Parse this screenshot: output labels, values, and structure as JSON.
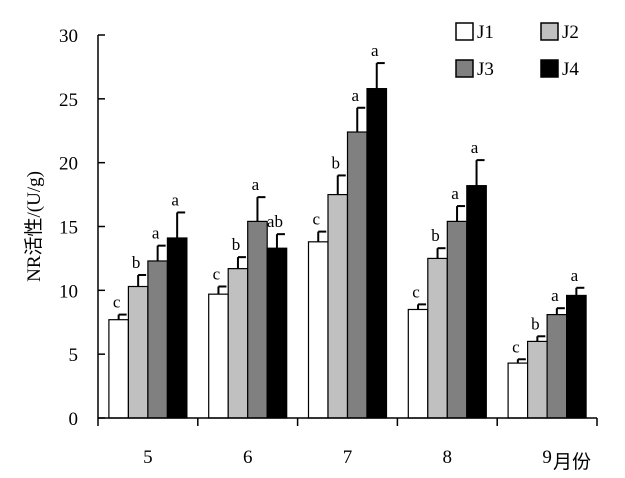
{
  "chart_data": {
    "type": "bar",
    "title": "",
    "ylabel": "NR活性/(U/g)",
    "xlabel": "月份",
    "ylim": [
      0,
      30
    ],
    "yticks": [
      0,
      5,
      10,
      15,
      20,
      25,
      30
    ],
    "categories": [
      "5",
      "6",
      "7",
      "8",
      "9"
    ],
    "legend_position": "top-right",
    "grid": false,
    "series": [
      {
        "name": "J1",
        "color": "#ffffff",
        "values": [
          7.7,
          9.7,
          13.8,
          8.5,
          4.3
        ],
        "errors": [
          0.4,
          0.6,
          0.8,
          0.4,
          0.3
        ],
        "letters": [
          "c",
          "c",
          "c",
          "c",
          "c"
        ]
      },
      {
        "name": "J2",
        "color": "#c0c0c0",
        "values": [
          10.3,
          11.7,
          17.5,
          12.5,
          6.0
        ],
        "errors": [
          0.9,
          0.9,
          1.5,
          0.8,
          0.4
        ],
        "letters": [
          "b",
          "b",
          "b",
          "b",
          "b"
        ]
      },
      {
        "name": "J3",
        "color": "#808080",
        "values": [
          12.3,
          15.4,
          22.4,
          15.4,
          8.1
        ],
        "errors": [
          1.2,
          1.9,
          1.9,
          1.2,
          0.5
        ],
        "letters": [
          "a",
          "a",
          "a",
          "a",
          "a"
        ]
      },
      {
        "name": "J4",
        "color": "#000000",
        "values": [
          14.1,
          13.3,
          25.8,
          18.2,
          9.6
        ],
        "errors": [
          2.0,
          1.1,
          2.0,
          2.0,
          0.6
        ],
        "letters": [
          "a",
          "ab",
          "a",
          "a",
          "a"
        ]
      }
    ]
  }
}
